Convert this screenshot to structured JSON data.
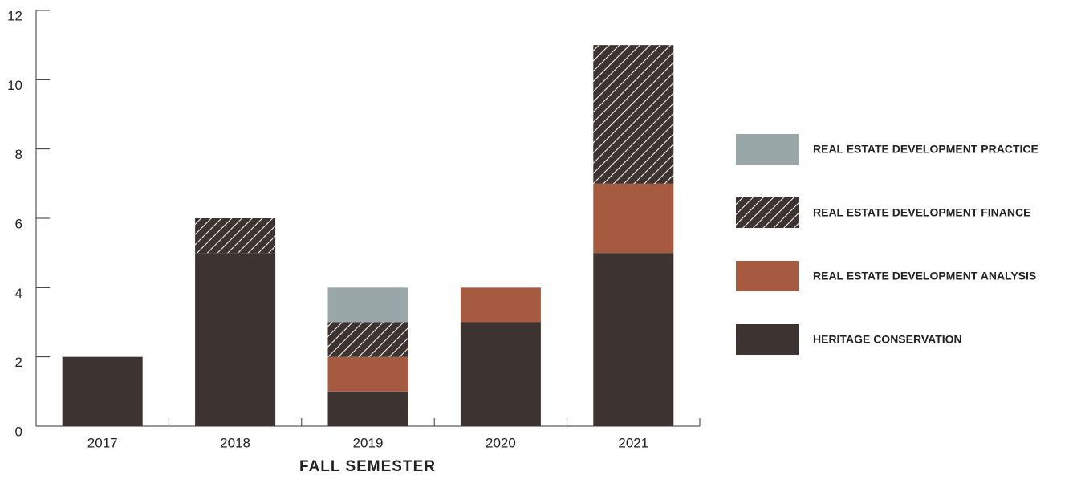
{
  "chart_data": {
    "type": "stacked_bar",
    "xlabel": "FALL SEMESTER",
    "categories": [
      "2017",
      "2018",
      "2019",
      "2020",
      "2021"
    ],
    "series": [
      {
        "name": "HERITAGE CONSERVATION",
        "color": "#3d3330",
        "values": [
          2,
          5,
          1,
          3,
          5
        ]
      },
      {
        "name": "REAL ESTATE DEVELOPMENT ANALYSIS",
        "color": "#a65a40",
        "values": [
          0,
          0,
          1,
          1,
          2
        ]
      },
      {
        "name": "REAL ESTATE DEVELOPMENT FINANCE",
        "color": "#3d3330",
        "pattern": "hatch",
        "values": [
          0,
          1,
          1,
          0,
          4
        ]
      },
      {
        "name": "REAL ESTATE DEVELOPMENT PRACTICE",
        "color": "#9aa7a9",
        "values": [
          0,
          0,
          1,
          0,
          0
        ]
      }
    ],
    "ylim": [
      0,
      12
    ],
    "yticks": [
      0,
      2,
      4,
      6,
      8,
      10,
      12
    ],
    "legend": "right"
  }
}
